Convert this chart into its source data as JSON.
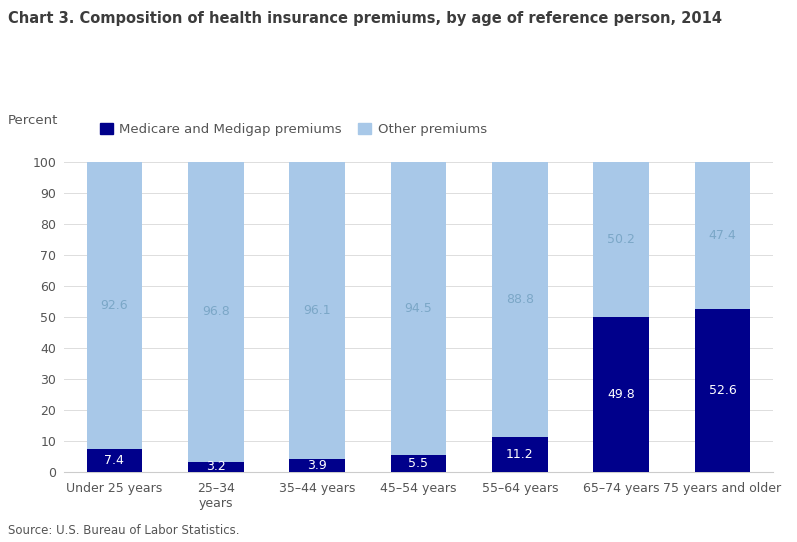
{
  "title": "Chart 3. Composition of health insurance premiums, by age of reference person, 2014",
  "ylabel": "Percent",
  "source": "Source: U.S. Bureau of Labor Statistics.",
  "categories": [
    "Under 25 years",
    "25–34\nyears",
    "35–44 years",
    "45–54 years",
    "55–64 years",
    "65–74 years",
    "75 years and older"
  ],
  "medicare_values": [
    7.4,
    3.2,
    3.9,
    5.5,
    11.2,
    49.8,
    52.6
  ],
  "other_values": [
    92.6,
    96.8,
    96.1,
    94.5,
    88.8,
    50.2,
    47.4
  ],
  "medicare_color": "#00008B",
  "other_color": "#A8C8E8",
  "legend_label_medicare": "Medicare and Medigap premiums",
  "legend_label_other": "Other premiums",
  "ylim": [
    0,
    105
  ],
  "yticks": [
    0,
    10,
    20,
    30,
    40,
    50,
    60,
    70,
    80,
    90,
    100
  ],
  "bar_width": 0.55,
  "title_fontsize": 10.5,
  "axis_fontsize": 9.5,
  "tick_fontsize": 9,
  "label_fontsize": 9,
  "source_fontsize": 8.5
}
